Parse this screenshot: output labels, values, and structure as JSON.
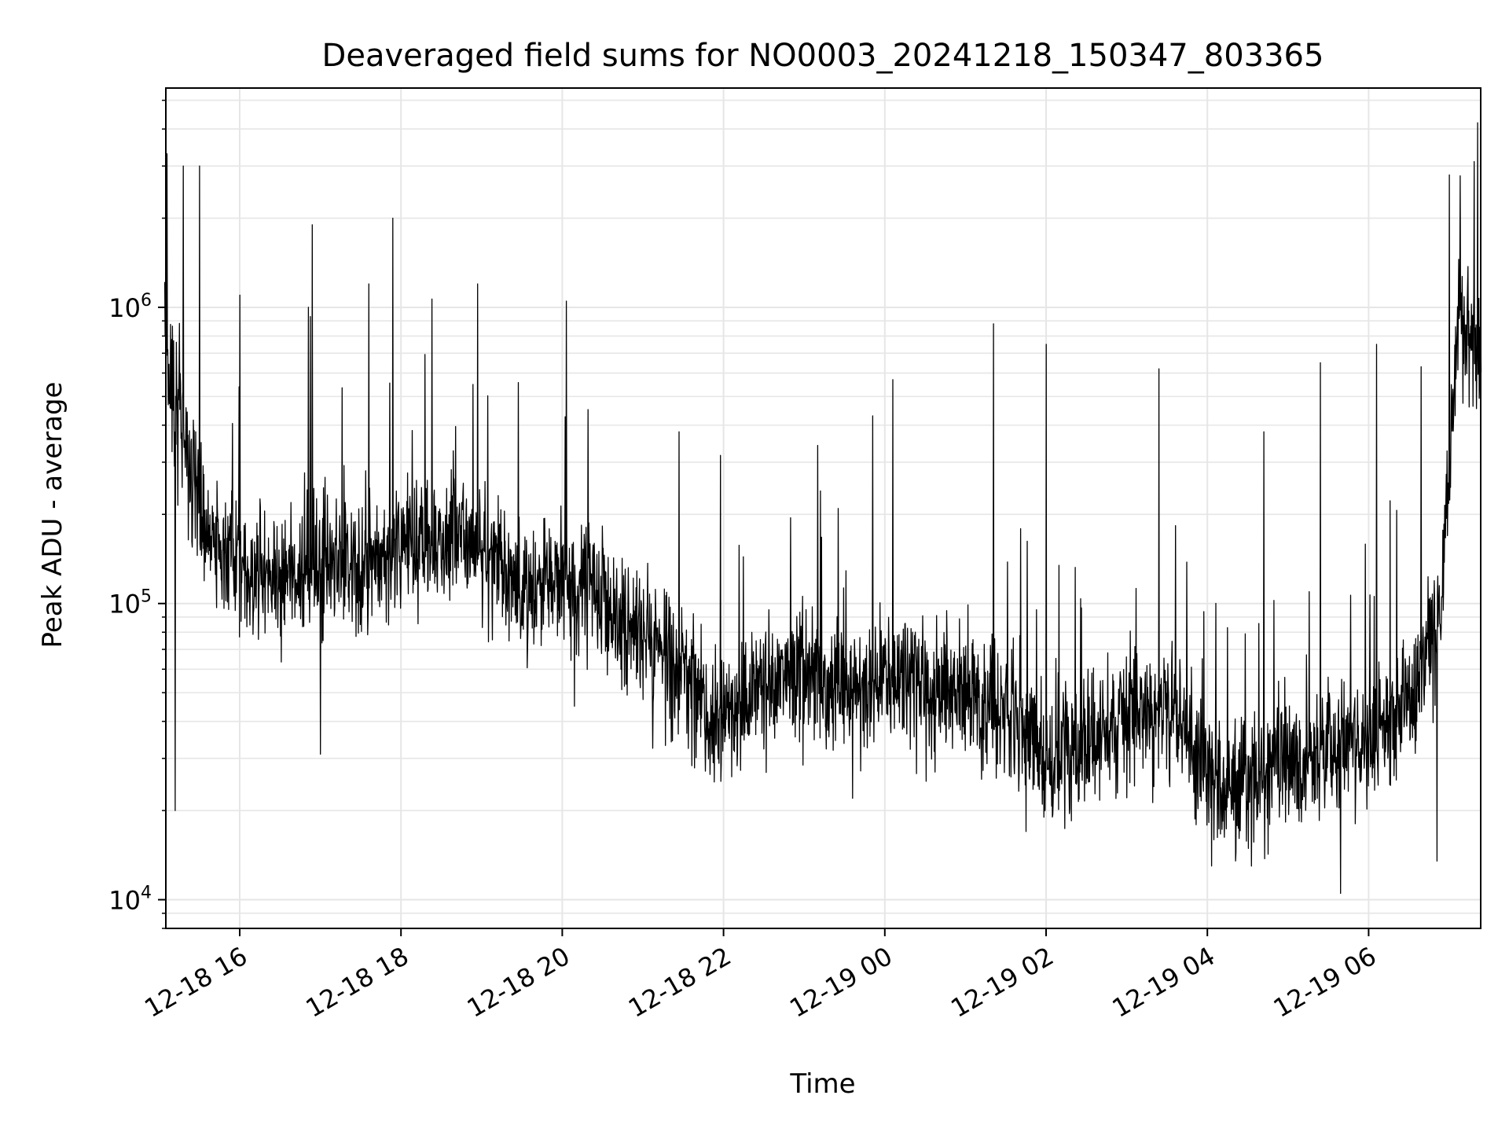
{
  "chart_data": {
    "type": "line",
    "title": "Deaveraged field sums for NO0003_20241218_150347_803365",
    "xlabel": "Time",
    "ylabel": "Peak ADU - average",
    "y_scale": "log",
    "ylim": [
      8000,
      5500000
    ],
    "xlim": [
      "12-18 15:04",
      "12-19 07:24"
    ],
    "grid": true,
    "legend": "none",
    "line_color": "#000000",
    "grid_color": "#e6e6e6",
    "x_ticks": [
      {
        "label": "12-18 16",
        "hours": 16
      },
      {
        "label": "12-18 18",
        "hours": 18
      },
      {
        "label": "12-18 20",
        "hours": 20
      },
      {
        "label": "12-18 22",
        "hours": 22
      },
      {
        "label": "12-19 00",
        "hours": 24
      },
      {
        "label": "12-19 02",
        "hours": 26
      },
      {
        "label": "12-19 04",
        "hours": 28
      },
      {
        "label": "12-19 06",
        "hours": 30
      }
    ],
    "y_ticks": [
      {
        "value": 10000,
        "base": "10",
        "exp": "4"
      },
      {
        "value": 100000,
        "base": "10",
        "exp": "5"
      },
      {
        "value": 1000000,
        "base": "10",
        "exp": "6"
      }
    ],
    "series": [
      {
        "trend_hours": [
          15.07,
          15.3,
          15.6,
          16.0,
          16.5,
          17.0,
          17.5,
          18.0,
          18.5,
          19.0,
          19.5,
          20.0,
          20.5,
          21.0,
          21.5,
          22.0,
          22.5,
          23.0,
          23.5,
          24.0,
          24.5,
          25.0,
          25.5,
          26.0,
          26.5,
          27.0,
          27.5,
          28.0,
          28.5,
          29.0,
          29.5,
          30.0,
          30.5,
          30.9,
          31.1,
          31.4
        ],
        "trend_values": [
          800000,
          350000,
          160000,
          130000,
          120000,
          130000,
          135000,
          160000,
          170000,
          150000,
          110000,
          130000,
          110000,
          75000,
          55000,
          38000,
          55000,
          58000,
          50000,
          55000,
          52000,
          50000,
          45000,
          30000,
          32000,
          45000,
          45000,
          26000,
          25000,
          28000,
          33000,
          35000,
          45000,
          100000,
          800000,
          800000
        ],
        "peaks": [
          {
            "hours": 15.1,
            "value": 3300000
          },
          {
            "hours": 15.3,
            "value": 3000000
          },
          {
            "hours": 15.5,
            "value": 3000000
          },
          {
            "hours": 16.0,
            "value": 1100000
          },
          {
            "hours": 16.85,
            "value": 1000000
          },
          {
            "hours": 16.9,
            "value": 1900000
          },
          {
            "hours": 17.6,
            "value": 1200000
          },
          {
            "hours": 17.9,
            "value": 2000000
          },
          {
            "hours": 18.95,
            "value": 1200000
          },
          {
            "hours": 20.05,
            "value": 1050000
          },
          {
            "hours": 21.45,
            "value": 380000
          },
          {
            "hours": 23.2,
            "value": 240000
          },
          {
            "hours": 23.85,
            "value": 430000
          },
          {
            "hours": 24.1,
            "value": 570000
          },
          {
            "hours": 25.35,
            "value": 880000
          },
          {
            "hours": 26.0,
            "value": 750000
          },
          {
            "hours": 27.4,
            "value": 620000
          },
          {
            "hours": 28.7,
            "value": 380000
          },
          {
            "hours": 29.4,
            "value": 650000
          },
          {
            "hours": 30.1,
            "value": 750000
          },
          {
            "hours": 30.65,
            "value": 630000
          },
          {
            "hours": 31.0,
            "value": 2800000
          },
          {
            "hours": 31.35,
            "value": 4200000
          }
        ],
        "dips": [
          {
            "hours": 15.2,
            "value": 20000
          },
          {
            "hours": 17.0,
            "value": 31000
          },
          {
            "hours": 20.15,
            "value": 45000
          },
          {
            "hours": 22.1,
            "value": 26000
          },
          {
            "hours": 23.6,
            "value": 22000
          },
          {
            "hours": 25.75,
            "value": 17000
          },
          {
            "hours": 28.05,
            "value": 13000
          },
          {
            "hours": 29.65,
            "value": 10500
          },
          {
            "hours": 30.85,
            "value": 13500
          }
        ]
      }
    ]
  }
}
